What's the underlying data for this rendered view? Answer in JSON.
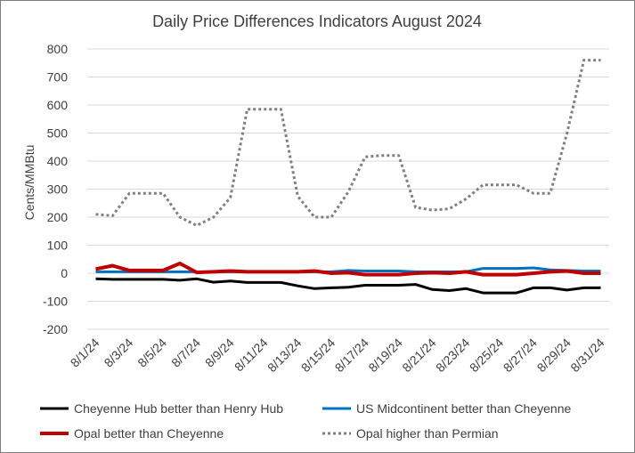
{
  "chart_data": {
    "type": "line",
    "title": "Daily Price Differences Indicators August 2024",
    "xlabel": "",
    "ylabel": "Cents/MMBtu",
    "ylim": [
      -200,
      800
    ],
    "yticks": [
      -200,
      -100,
      0,
      100,
      200,
      300,
      400,
      500,
      600,
      700,
      800
    ],
    "grid": true,
    "legend_position": "bottom",
    "x": [
      "8/1/24",
      "8/2/24",
      "8/3/24",
      "8/4/24",
      "8/5/24",
      "8/6/24",
      "8/7/24",
      "8/8/24",
      "8/9/24",
      "8/10/24",
      "8/11/24",
      "8/12/24",
      "8/13/24",
      "8/14/24",
      "8/15/24",
      "8/16/24",
      "8/17/24",
      "8/18/24",
      "8/19/24",
      "8/20/24",
      "8/21/24",
      "8/22/24",
      "8/23/24",
      "8/24/24",
      "8/25/24",
      "8/26/24",
      "8/27/24",
      "8/28/24",
      "8/29/24",
      "8/30/24",
      "8/31/24"
    ],
    "xtick_labels": [
      "8/1/24",
      "8/3/24",
      "8/5/24",
      "8/7/24",
      "8/9/24",
      "8/11/24",
      "8/13/24",
      "8/15/24",
      "8/17/24",
      "8/19/24",
      "8/21/24",
      "8/23/24",
      "8/25/24",
      "8/27/24",
      "8/29/24",
      "8/31/24"
    ],
    "series": [
      {
        "name": "Cheyenne Hub better than Henry Hub",
        "color": "#000000",
        "style": "solid",
        "values": [
          -20,
          -22,
          -22,
          -22,
          -22,
          -25,
          -20,
          -32,
          -28,
          -33,
          -33,
          -33,
          -45,
          -55,
          -52,
          -50,
          -43,
          -43,
          -43,
          -40,
          -58,
          -62,
          -55,
          -70,
          -70,
          -70,
          -52,
          -52,
          -60,
          -52,
          -52
        ]
      },
      {
        "name": "US Midcontinent better than Cheyenne",
        "color": "#0070c0",
        "style": "solid",
        "values": [
          5,
          5,
          5,
          5,
          5,
          5,
          5,
          5,
          5,
          5,
          5,
          5,
          5,
          5,
          5,
          10,
          8,
          8,
          8,
          5,
          5,
          5,
          5,
          17,
          17,
          17,
          19,
          12,
          10,
          8,
          8
        ]
      },
      {
        "name": "Opal better than Cheyenne",
        "color": "#c00000",
        "style": "solid",
        "values": [
          15,
          27,
          10,
          10,
          10,
          35,
          3,
          5,
          8,
          5,
          5,
          5,
          5,
          8,
          0,
          2,
          -5,
          -5,
          -5,
          0,
          2,
          0,
          5,
          -5,
          -5,
          -5,
          0,
          5,
          8,
          0,
          0
        ]
      },
      {
        "name": "Opal higher than Permian",
        "color": "#808080",
        "style": "dotted",
        "values": [
          210,
          205,
          285,
          285,
          285,
          200,
          170,
          200,
          270,
          585,
          585,
          585,
          275,
          200,
          200,
          290,
          415,
          420,
          420,
          235,
          225,
          230,
          265,
          315,
          315,
          315,
          285,
          285,
          500,
          760,
          760
        ]
      }
    ]
  }
}
